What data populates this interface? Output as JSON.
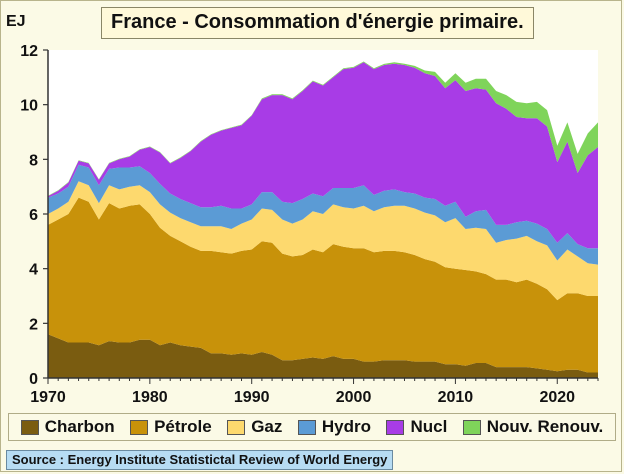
{
  "title": "France - Consommation d'énergie primaire.",
  "source": "Source : Energy Institute Statistictal Review of World Energy",
  "chart_data": {
    "type": "area",
    "stacked": true,
    "title": "France - Consommation d'énergie primaire.",
    "ylabel": "EJ",
    "xlabel": "",
    "xlim": [
      1970,
      2024
    ],
    "ylim": [
      0,
      12
    ],
    "xticks": [
      1970,
      1980,
      1990,
      2000,
      2010,
      2020
    ],
    "yticks": [
      0,
      2,
      4,
      6,
      8,
      10,
      12
    ],
    "grid": false,
    "legend_position": "bottom",
    "x": [
      1970,
      1971,
      1972,
      1973,
      1974,
      1975,
      1976,
      1977,
      1978,
      1979,
      1980,
      1981,
      1982,
      1983,
      1984,
      1985,
      1986,
      1987,
      1988,
      1989,
      1990,
      1991,
      1992,
      1993,
      1994,
      1995,
      1996,
      1997,
      1998,
      1999,
      2000,
      2001,
      2002,
      2003,
      2004,
      2005,
      2006,
      2007,
      2008,
      2009,
      2010,
      2011,
      2012,
      2013,
      2014,
      2015,
      2016,
      2017,
      2018,
      2019,
      2020,
      2021,
      2022,
      2023,
      2024
    ],
    "series": [
      {
        "name": "Charbon",
        "color": "#7a5c10",
        "values": [
          1.6,
          1.45,
          1.3,
          1.3,
          1.3,
          1.2,
          1.35,
          1.3,
          1.3,
          1.4,
          1.4,
          1.2,
          1.3,
          1.2,
          1.15,
          1.1,
          0.9,
          0.9,
          0.85,
          0.9,
          0.85,
          0.95,
          0.85,
          0.65,
          0.65,
          0.7,
          0.75,
          0.7,
          0.8,
          0.7,
          0.7,
          0.6,
          0.6,
          0.65,
          0.65,
          0.65,
          0.6,
          0.6,
          0.6,
          0.5,
          0.5,
          0.45,
          0.55,
          0.55,
          0.4,
          0.4,
          0.4,
          0.4,
          0.35,
          0.3,
          0.25,
          0.3,
          0.3,
          0.2,
          0.2
        ]
      },
      {
        "name": "Pétrole",
        "color": "#c8920a",
        "values": [
          4.0,
          4.35,
          4.7,
          5.3,
          5.15,
          4.6,
          5.05,
          4.9,
          5.0,
          4.95,
          4.6,
          4.3,
          3.9,
          3.8,
          3.65,
          3.55,
          3.75,
          3.7,
          3.7,
          3.75,
          3.85,
          4.05,
          4.1,
          3.9,
          3.8,
          3.8,
          3.95,
          3.9,
          4.1,
          4.1,
          4.05,
          4.15,
          4.0,
          4.0,
          4.0,
          3.95,
          3.9,
          3.75,
          3.65,
          3.55,
          3.5,
          3.5,
          3.35,
          3.25,
          3.2,
          3.2,
          3.1,
          3.2,
          3.1,
          2.95,
          2.6,
          2.8,
          2.8,
          2.8,
          2.8
        ]
      },
      {
        "name": "Gaz",
        "color": "#fdd96e",
        "values": [
          0.4,
          0.4,
          0.45,
          0.6,
          0.6,
          0.6,
          0.65,
          0.7,
          0.7,
          0.7,
          0.8,
          0.85,
          0.85,
          0.85,
          0.9,
          0.9,
          0.9,
          0.95,
          0.9,
          1.0,
          1.1,
          1.2,
          1.2,
          1.25,
          1.2,
          1.3,
          1.4,
          1.4,
          1.45,
          1.45,
          1.45,
          1.55,
          1.5,
          1.6,
          1.65,
          1.7,
          1.7,
          1.7,
          1.7,
          1.65,
          1.85,
          1.5,
          1.6,
          1.65,
          1.35,
          1.45,
          1.6,
          1.6,
          1.55,
          1.6,
          1.45,
          1.6,
          1.35,
          1.2,
          1.15
        ]
      },
      {
        "name": "Hydro",
        "color": "#5b9bd5",
        "values": [
          0.6,
          0.55,
          0.55,
          0.6,
          0.65,
          0.65,
          0.6,
          0.8,
          0.7,
          0.7,
          0.7,
          0.75,
          0.7,
          0.7,
          0.7,
          0.7,
          0.7,
          0.75,
          0.75,
          0.55,
          0.55,
          0.6,
          0.65,
          0.65,
          0.75,
          0.75,
          0.65,
          0.65,
          0.6,
          0.7,
          0.75,
          0.75,
          0.6,
          0.6,
          0.6,
          0.5,
          0.55,
          0.55,
          0.6,
          0.6,
          0.6,
          0.45,
          0.6,
          0.7,
          0.65,
          0.55,
          0.6,
          0.55,
          0.65,
          0.6,
          0.65,
          0.6,
          0.45,
          0.55,
          0.6
        ]
      },
      {
        "name": "Nucl",
        "color": "#a83ce6",
        "values": [
          0.05,
          0.1,
          0.15,
          0.15,
          0.15,
          0.2,
          0.2,
          0.3,
          0.4,
          0.6,
          0.95,
          1.15,
          1.1,
          1.5,
          1.9,
          2.4,
          2.65,
          2.75,
          2.95,
          3.05,
          3.25,
          3.4,
          3.55,
          3.9,
          3.8,
          3.95,
          4.1,
          4.05,
          4.05,
          4.35,
          4.4,
          4.5,
          4.6,
          4.6,
          4.6,
          4.65,
          4.6,
          4.55,
          4.5,
          4.3,
          4.45,
          4.6,
          4.5,
          4.4,
          4.45,
          4.25,
          3.85,
          3.75,
          3.85,
          3.75,
          2.95,
          3.35,
          2.6,
          3.4,
          3.7
        ]
      },
      {
        "name": "Nouv. Renouv.",
        "color": "#7fd45a",
        "values": [
          0.02,
          0.02,
          0.02,
          0.02,
          0.02,
          0.02,
          0.02,
          0.02,
          0.02,
          0.02,
          0.02,
          0.02,
          0.02,
          0.02,
          0.02,
          0.02,
          0.02,
          0.02,
          0.02,
          0.02,
          0.02,
          0.03,
          0.03,
          0.03,
          0.03,
          0.03,
          0.03,
          0.03,
          0.03,
          0.03,
          0.03,
          0.03,
          0.03,
          0.04,
          0.05,
          0.05,
          0.07,
          0.1,
          0.15,
          0.2,
          0.25,
          0.3,
          0.35,
          0.4,
          0.45,
          0.5,
          0.55,
          0.55,
          0.6,
          0.6,
          0.6,
          0.7,
          0.7,
          0.8,
          0.9
        ]
      }
    ]
  }
}
